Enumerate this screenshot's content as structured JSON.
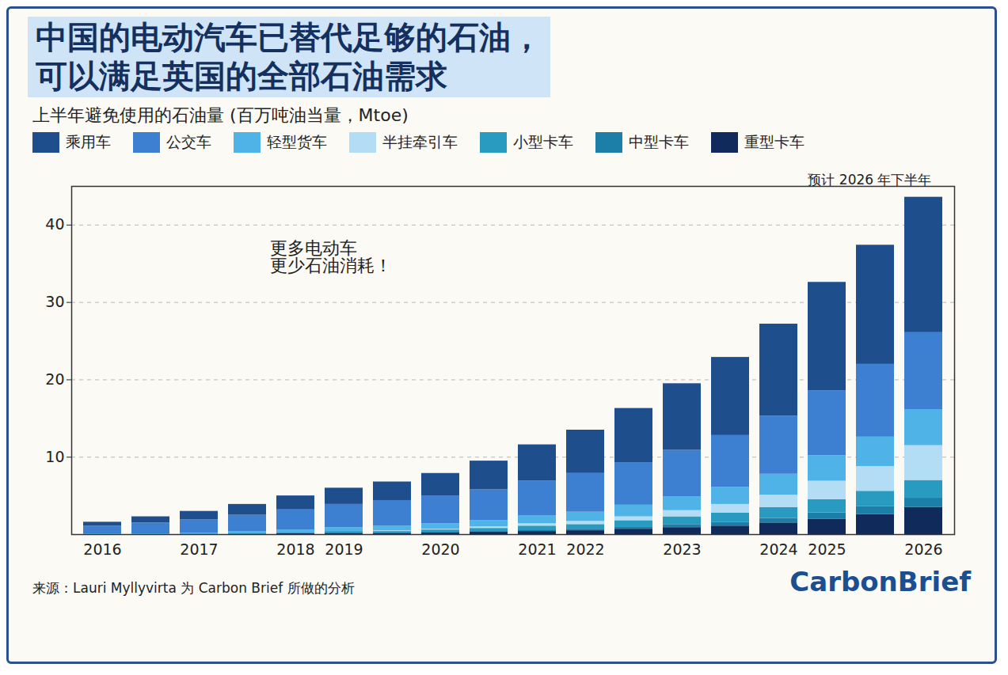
{
  "chart_data": {
    "type": "bar",
    "title": "中国的电动汽车已替代足够的石油，\n可以满足英国的全部石油需求",
    "subtitle": "上半年避免使用的石油量 (百万吨油当量，Mtoe)",
    "source": "来源：Lauri Myllyvirta 为 Carbon Brief 所做的分析",
    "brand": "CarbonBrief",
    "annotations": [
      "更多电动车\n更少石油消耗！",
      "预计 2026 年下半年"
    ],
    "categories": [
      "2016",
      null,
      "2017",
      null,
      "2018",
      "2019",
      null,
      "2020",
      null,
      "2021",
      "2022",
      null,
      "2023",
      null,
      "2024",
      "2025",
      null,
      "2026"
    ],
    "series": [
      {
        "name": "乘用车",
        "color": "#1f4e8c",
        "values": [
          0.5,
          0.8,
          1.1,
          1.4,
          1.8,
          2.1,
          2.4,
          2.9,
          3.7,
          4.7,
          5.6,
          7.0,
          8.6,
          10.1,
          11.9,
          14.0,
          15.4,
          17.5
        ]
      },
      {
        "name": "公交车",
        "color": "#3d7fd0",
        "values": [
          1.0,
          1.4,
          1.7,
          2.1,
          2.6,
          3.0,
          3.3,
          3.6,
          4.0,
          4.5,
          5.0,
          5.5,
          6.0,
          6.7,
          7.5,
          8.4,
          9.4,
          10.0
        ]
      },
      {
        "name": "轻型货车",
        "color": "#4fb3e8",
        "values": [
          0.1,
          0.1,
          0.2,
          0.3,
          0.4,
          0.5,
          0.6,
          0.7,
          0.8,
          1.0,
          1.2,
          1.5,
          1.8,
          2.2,
          2.7,
          3.3,
          3.8,
          4.6
        ]
      },
      {
        "name": "半挂牵引车",
        "color": "#b3dcf5",
        "values": [
          0,
          0,
          0,
          0,
          0,
          0,
          0.1,
          0.1,
          0.2,
          0.3,
          0.4,
          0.5,
          0.8,
          1.1,
          1.6,
          2.4,
          3.2,
          4.5
        ]
      },
      {
        "name": "小型卡车",
        "color": "#2a9bc0",
        "values": [
          0,
          0,
          0,
          0.1,
          0.1,
          0.2,
          0.2,
          0.3,
          0.4,
          0.5,
          0.6,
          0.8,
          1.0,
          1.2,
          1.4,
          1.7,
          2.0,
          2.3
        ]
      },
      {
        "name": "中型卡车",
        "color": "#1b7fa8",
        "values": [
          0,
          0,
          0,
          0,
          0,
          0.1,
          0.1,
          0.1,
          0.1,
          0.2,
          0.2,
          0.3,
          0.4,
          0.5,
          0.6,
          0.8,
          1.0,
          1.2
        ]
      },
      {
        "name": "重型卡车",
        "color": "#102a5c",
        "values": [
          0,
          0,
          0,
          0,
          0.1,
          0.1,
          0.1,
          0.2,
          0.3,
          0.4,
          0.5,
          0.7,
          0.9,
          1.1,
          1.5,
          2.0,
          2.6,
          3.5
        ]
      }
    ],
    "stacked": true,
    "legend": "top-left",
    "ylim": [
      0,
      45
    ],
    "yticks": [
      10,
      20,
      30,
      40
    ],
    "grid": true
  }
}
